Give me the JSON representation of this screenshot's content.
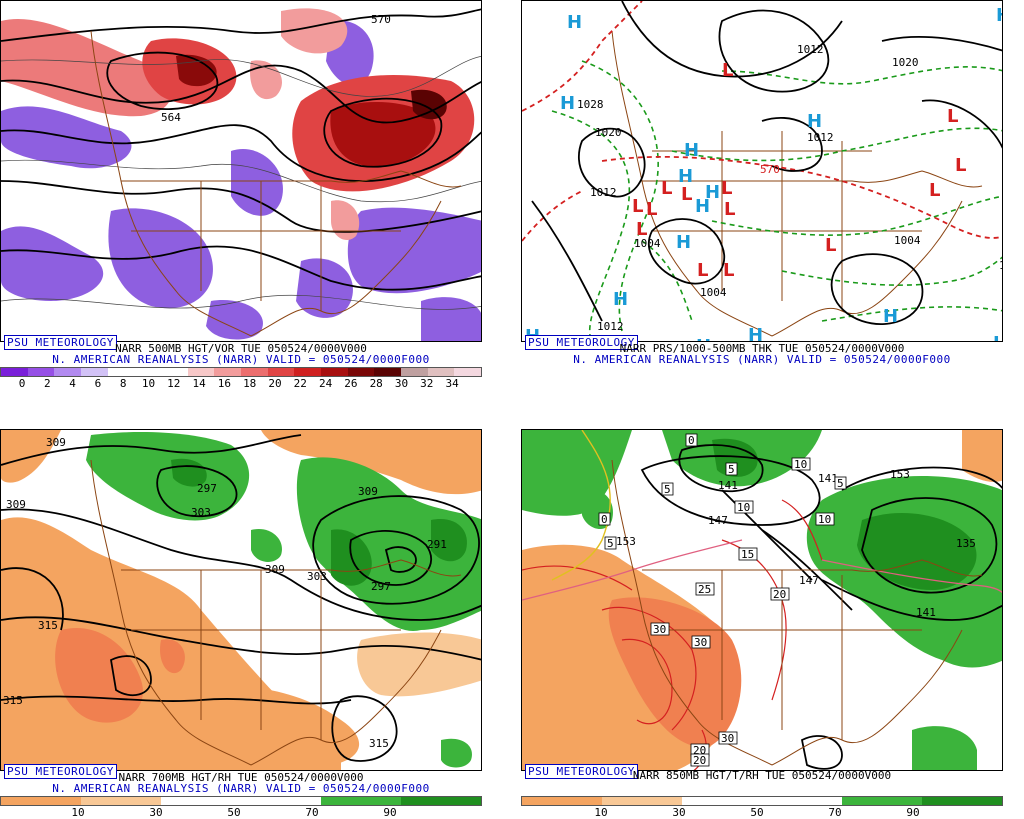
{
  "badge": "PSU METEOROLOGY",
  "panels": {
    "p1": {
      "line1": "NARR 500MB HGT/VOR TUE 050524/0000V000",
      "line2": "N. AMERICAN REANALYSIS (NARR) VALID = 050524/0000F000",
      "ticks": [
        "0",
        "2",
        "4",
        "6",
        "8",
        "10",
        "12",
        "14",
        "16",
        "18",
        "20",
        "22",
        "24",
        "26",
        "28",
        "30",
        "32",
        "34"
      ],
      "contour_labels": [
        "570",
        "564"
      ],
      "colors": [
        "#7a1fd9",
        "#9650e6",
        "#b28af0",
        "#d2c2f6",
        "#ffffff",
        "#ffffff",
        "#ffffff",
        "#f7c8c8",
        "#f29c9c",
        "#ec6e6e",
        "#e04444",
        "#cf2020",
        "#a80f0f",
        "#7a0707",
        "#5a0303",
        "#bfa0a0",
        "#e0c0c0",
        "#f4d8e0"
      ]
    },
    "p2": {
      "line1": "NARR PRS/1000-500MB THK TUE 050524/0000V000",
      "line2": "N. AMERICAN REANALYSIS (NARR) VALID = 050524/0000F000",
      "contour_labels": [
        "1012",
        "1020",
        "1012",
        "1028",
        "1020",
        "1012",
        "1004",
        "1004",
        "1012",
        "1004",
        "1012",
        "570",
        "1012"
      ],
      "h_label": "H",
      "l_label": "L"
    },
    "p3": {
      "line1": "NARR 700MB HGT/RH TUE 050524/0000V000",
      "line2": "N. AMERICAN REANALYSIS (NARR) VALID = 050524/0000F000",
      "ticks": [
        "10",
        "30",
        "50",
        "70",
        "90"
      ],
      "contour_labels": [
        "309",
        "309",
        "297",
        "303",
        "309",
        "309",
        "303",
        "297",
        "291",
        "315",
        "315",
        "315"
      ],
      "colors": [
        "#f4a460",
        "#f8c896",
        "#ffffff",
        "#ffffff",
        "#3cb43c",
        "#1f8f1f"
      ]
    },
    "p4": {
      "line1": "NARR 850MB HGT/T/RH TUE 050524/0000V000",
      "ticks": [
        "10",
        "30",
        "50",
        "70",
        "90"
      ],
      "contour_labels": [
        "153",
        "141",
        "147",
        "141",
        "153",
        "135",
        "147",
        "141",
        "153"
      ],
      "temp_labels": [
        "0",
        "0",
        "5",
        "5",
        "5",
        "5",
        "10",
        "10",
        "10",
        "15",
        "20",
        "25",
        "30",
        "30",
        "30",
        "20",
        "20"
      ],
      "colors": [
        "#f4a460",
        "#f8c896",
        "#ffffff",
        "#ffffff",
        "#3cb43c",
        "#1f8f1f"
      ]
    }
  }
}
